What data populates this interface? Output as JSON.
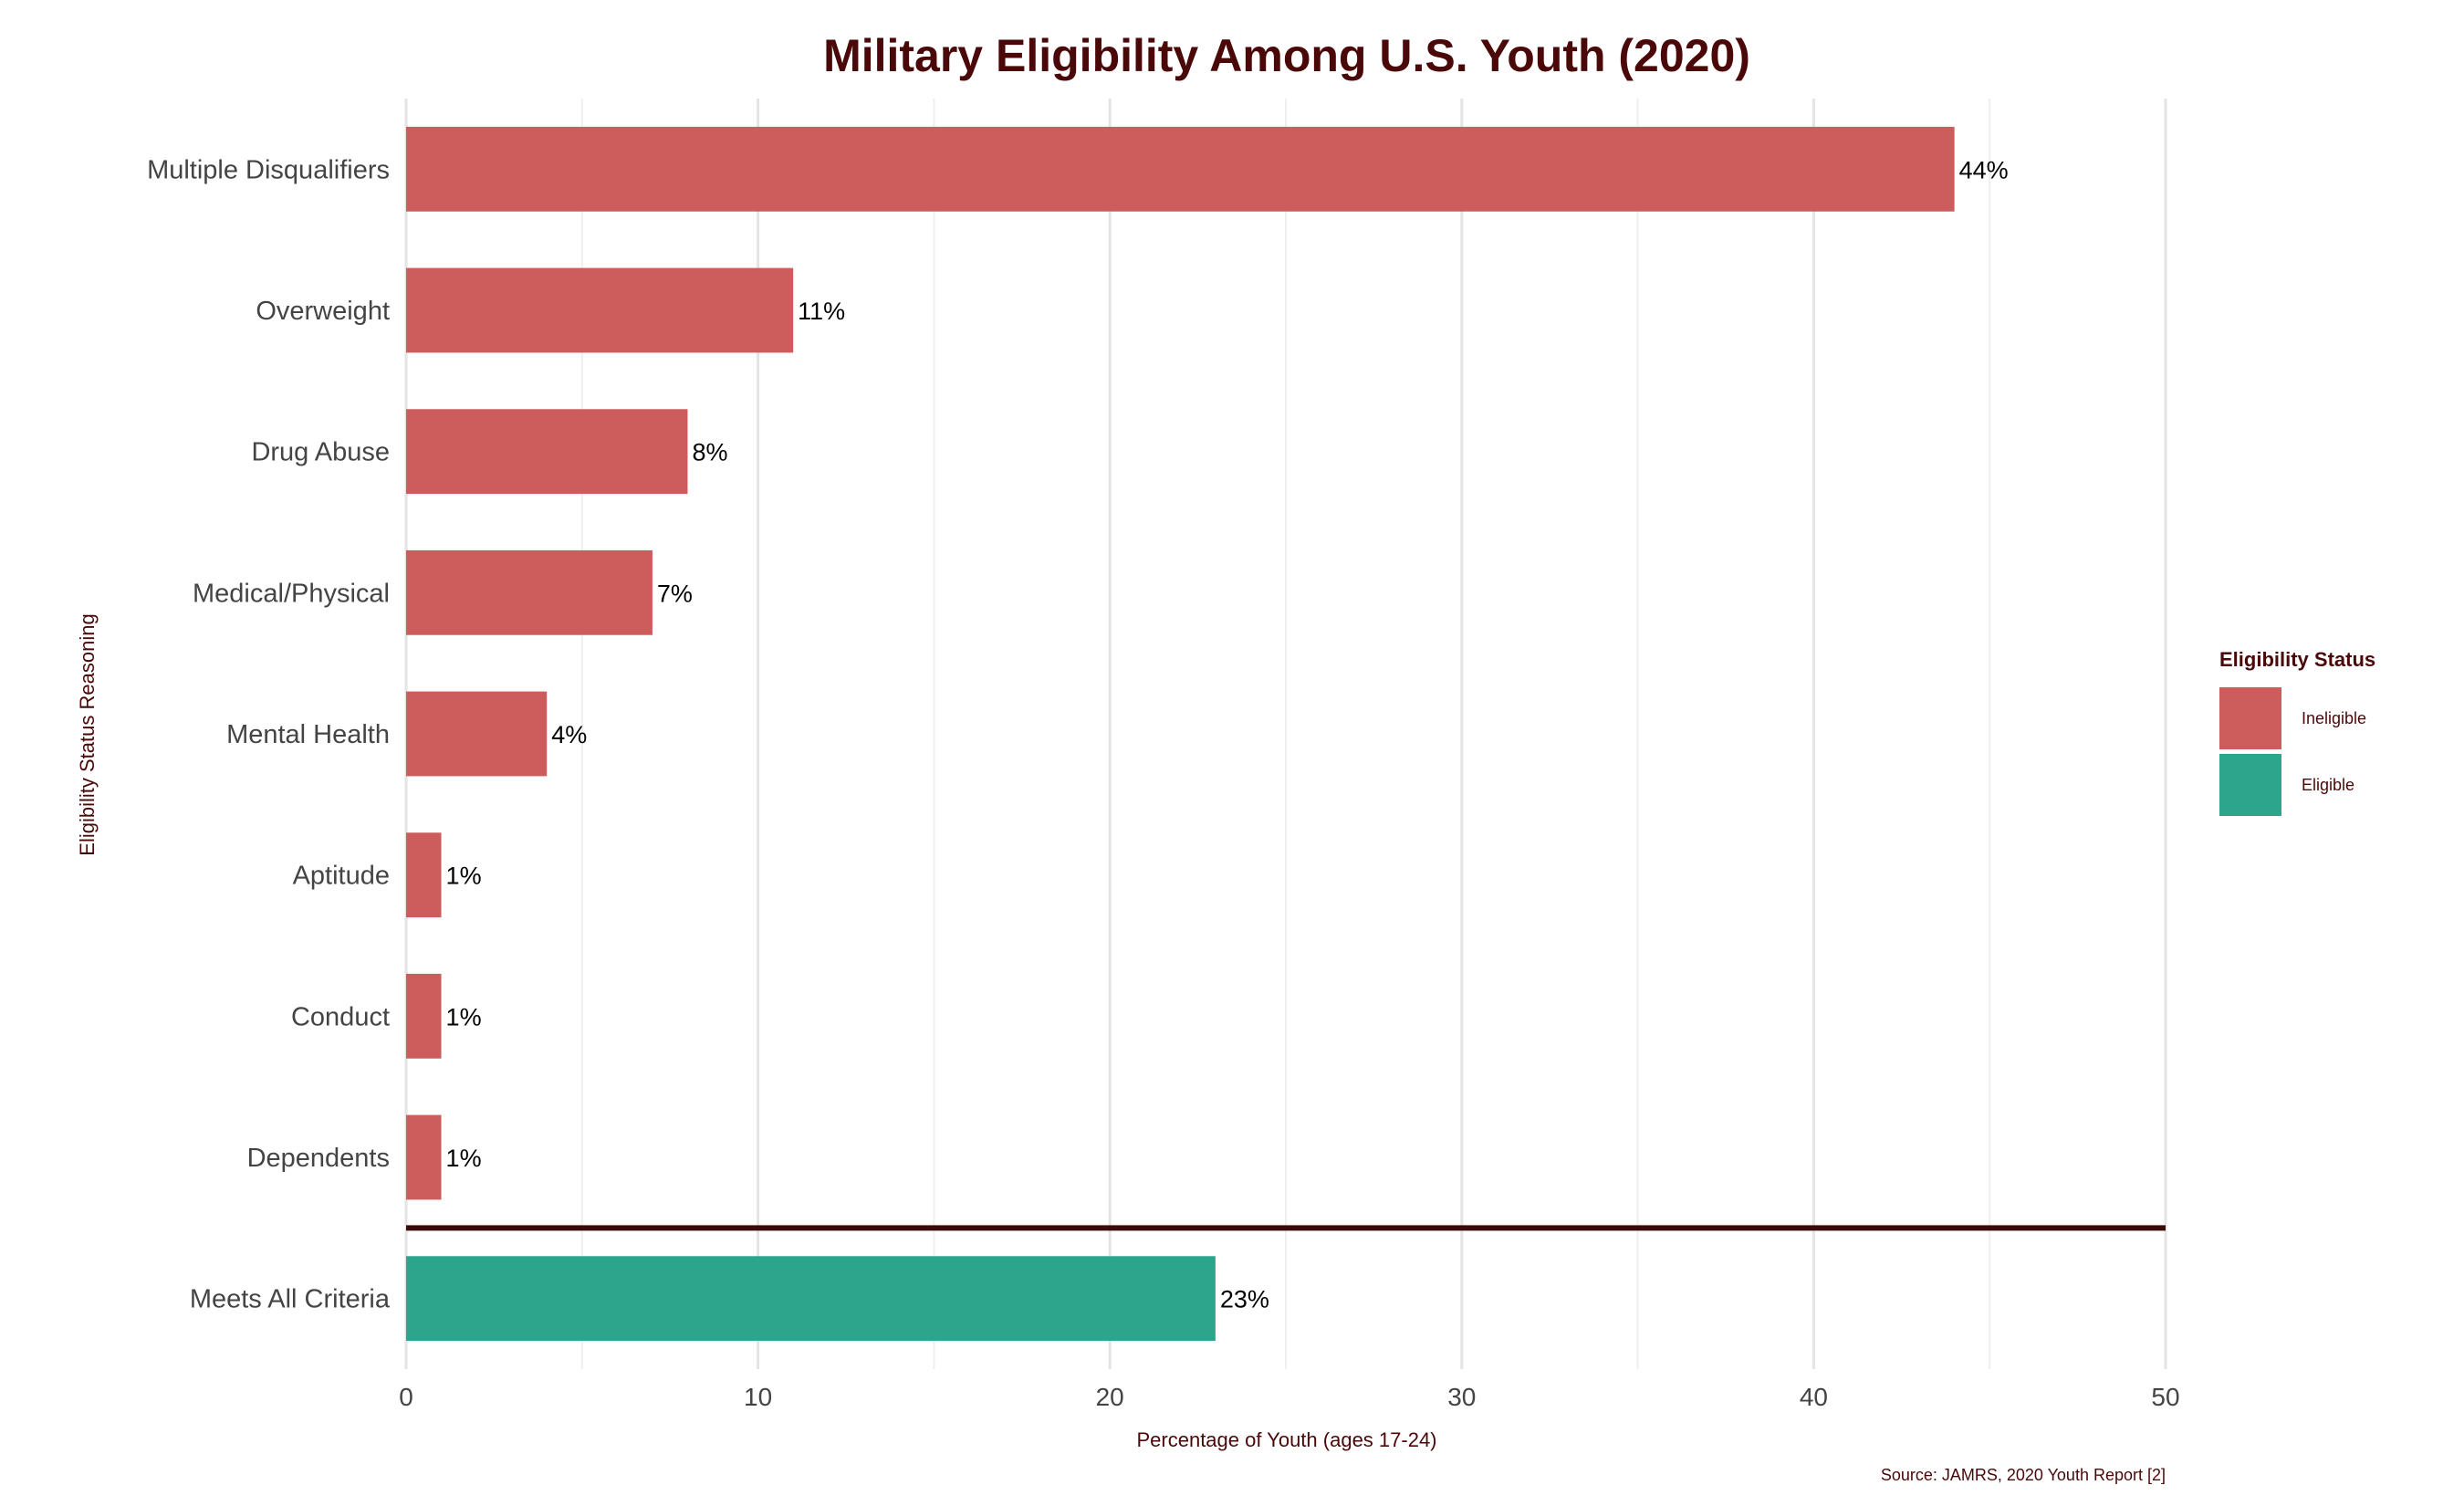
{
  "chart_data": {
    "type": "bar",
    "orientation": "horizontal",
    "title": "Military Eligibility Among U.S. Youth (2020)",
    "xlabel": "Percentage of Youth (ages 17-24)",
    "ylabel": "Eligibility Status Reasoning",
    "caption": "Source: JAMRS, 2020 Youth Report [2]",
    "xlim": [
      0,
      50
    ],
    "x_ticks": [
      0,
      10,
      20,
      30,
      40,
      50
    ],
    "grid": true,
    "legend": {
      "title": "Eligibility Status",
      "placement": "right",
      "entries": [
        {
          "label": "Ineligible",
          "color": "#cd5c5c"
        },
        {
          "label": "Eligible",
          "color": "#2ca58d"
        }
      ]
    },
    "bars": [
      {
        "category": "Multiple Disqualifiers",
        "value": 44,
        "label": "44%",
        "status": "Ineligible"
      },
      {
        "category": "Overweight",
        "value": 11,
        "label": "11%",
        "status": "Ineligible"
      },
      {
        "category": "Drug Abuse",
        "value": 8,
        "label": "8%",
        "status": "Ineligible"
      },
      {
        "category": "Medical/Physical",
        "value": 7,
        "label": "7%",
        "status": "Ineligible"
      },
      {
        "category": "Mental Health",
        "value": 4,
        "label": "4%",
        "status": "Ineligible"
      },
      {
        "category": "Aptitude",
        "value": 1,
        "label": "1%",
        "status": "Ineligible"
      },
      {
        "category": "Conduct",
        "value": 1,
        "label": "1%",
        "status": "Ineligible"
      },
      {
        "category": "Dependents",
        "value": 1,
        "label": "1%",
        "status": "Ineligible"
      },
      {
        "category": "Meets All Criteria",
        "value": 23,
        "label": "23%",
        "status": "Eligible"
      }
    ],
    "separator_color": "#3d0a0a"
  }
}
